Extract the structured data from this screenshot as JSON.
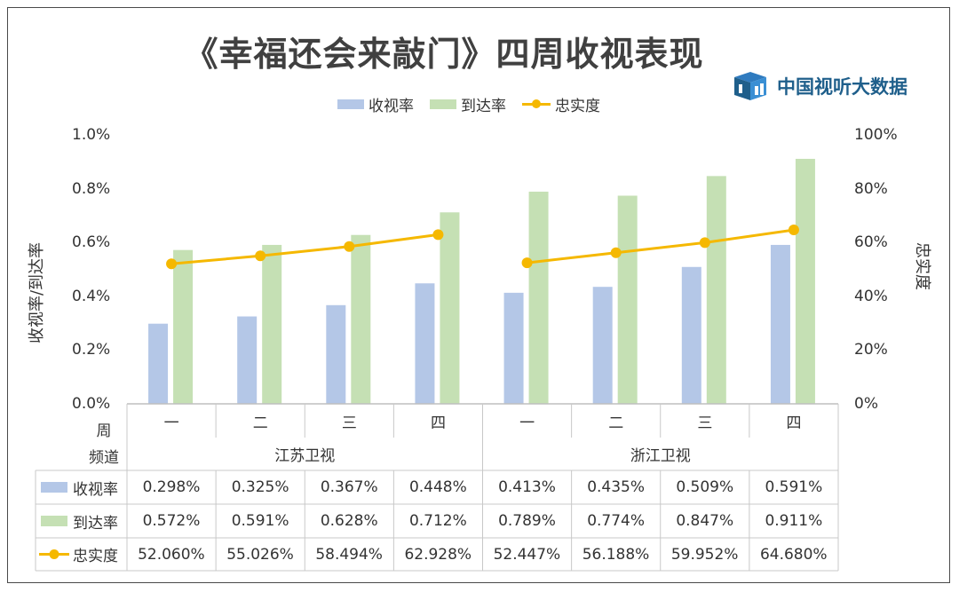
{
  "title": "《幸福还会来敲门》四周收视表现",
  "logo": {
    "text": "中国视听大数据",
    "icon": "chart-cube-logo-icon",
    "color": "#1f5f8b"
  },
  "legend": [
    {
      "name": "收视率",
      "color": "#b4c7e7",
      "kind": "bar"
    },
    {
      "name": "到达率",
      "color": "#c5e0b4",
      "kind": "bar"
    },
    {
      "name": "忠实度",
      "color": "#f5b800",
      "kind": "line"
    }
  ],
  "chart_data": {
    "type": "bar",
    "title": "《幸福还会来敲门》四周收视表现",
    "ylabel": "收视率/到达率",
    "y2label": "忠实度",
    "ylim": [
      0,
      1.0
    ],
    "y2lim": [
      0,
      100
    ],
    "yticks": [
      "0.0%",
      "0.2%",
      "0.4%",
      "0.6%",
      "0.8%",
      "1.0%"
    ],
    "y2ticks": [
      "0%",
      "20%",
      "40%",
      "60%",
      "80%",
      "100%"
    ],
    "week_header": "周",
    "channel_header": "频道",
    "groups": [
      {
        "name": "江苏卫视",
        "weeks": [
          "一",
          "二",
          "三",
          "四"
        ]
      },
      {
        "name": "浙江卫视",
        "weeks": [
          "一",
          "二",
          "三",
          "四"
        ]
      }
    ],
    "series": [
      {
        "name": "收视率",
        "type": "bar",
        "axis": "left",
        "values": [
          0.298,
          0.325,
          0.367,
          0.448,
          0.413,
          0.435,
          0.509,
          0.591
        ],
        "labels": [
          "0.298%",
          "0.325%",
          "0.367%",
          "0.448%",
          "0.413%",
          "0.435%",
          "0.509%",
          "0.591%"
        ]
      },
      {
        "name": "到达率",
        "type": "bar",
        "axis": "left",
        "values": [
          0.572,
          0.591,
          0.628,
          0.712,
          0.789,
          0.774,
          0.847,
          0.911
        ],
        "labels": [
          "0.572%",
          "0.591%",
          "0.628%",
          "0.712%",
          "0.789%",
          "0.774%",
          "0.847%",
          "0.911%"
        ]
      },
      {
        "name": "忠实度",
        "type": "line",
        "axis": "right",
        "values": [
          52.06,
          55.026,
          58.494,
          62.928,
          52.447,
          56.188,
          59.952,
          64.68
        ],
        "labels": [
          "52.060%",
          "55.026%",
          "58.494%",
          "62.928%",
          "52.447%",
          "56.188%",
          "59.952%",
          "64.680%"
        ]
      }
    ],
    "grid": false,
    "legend_position": "top"
  }
}
